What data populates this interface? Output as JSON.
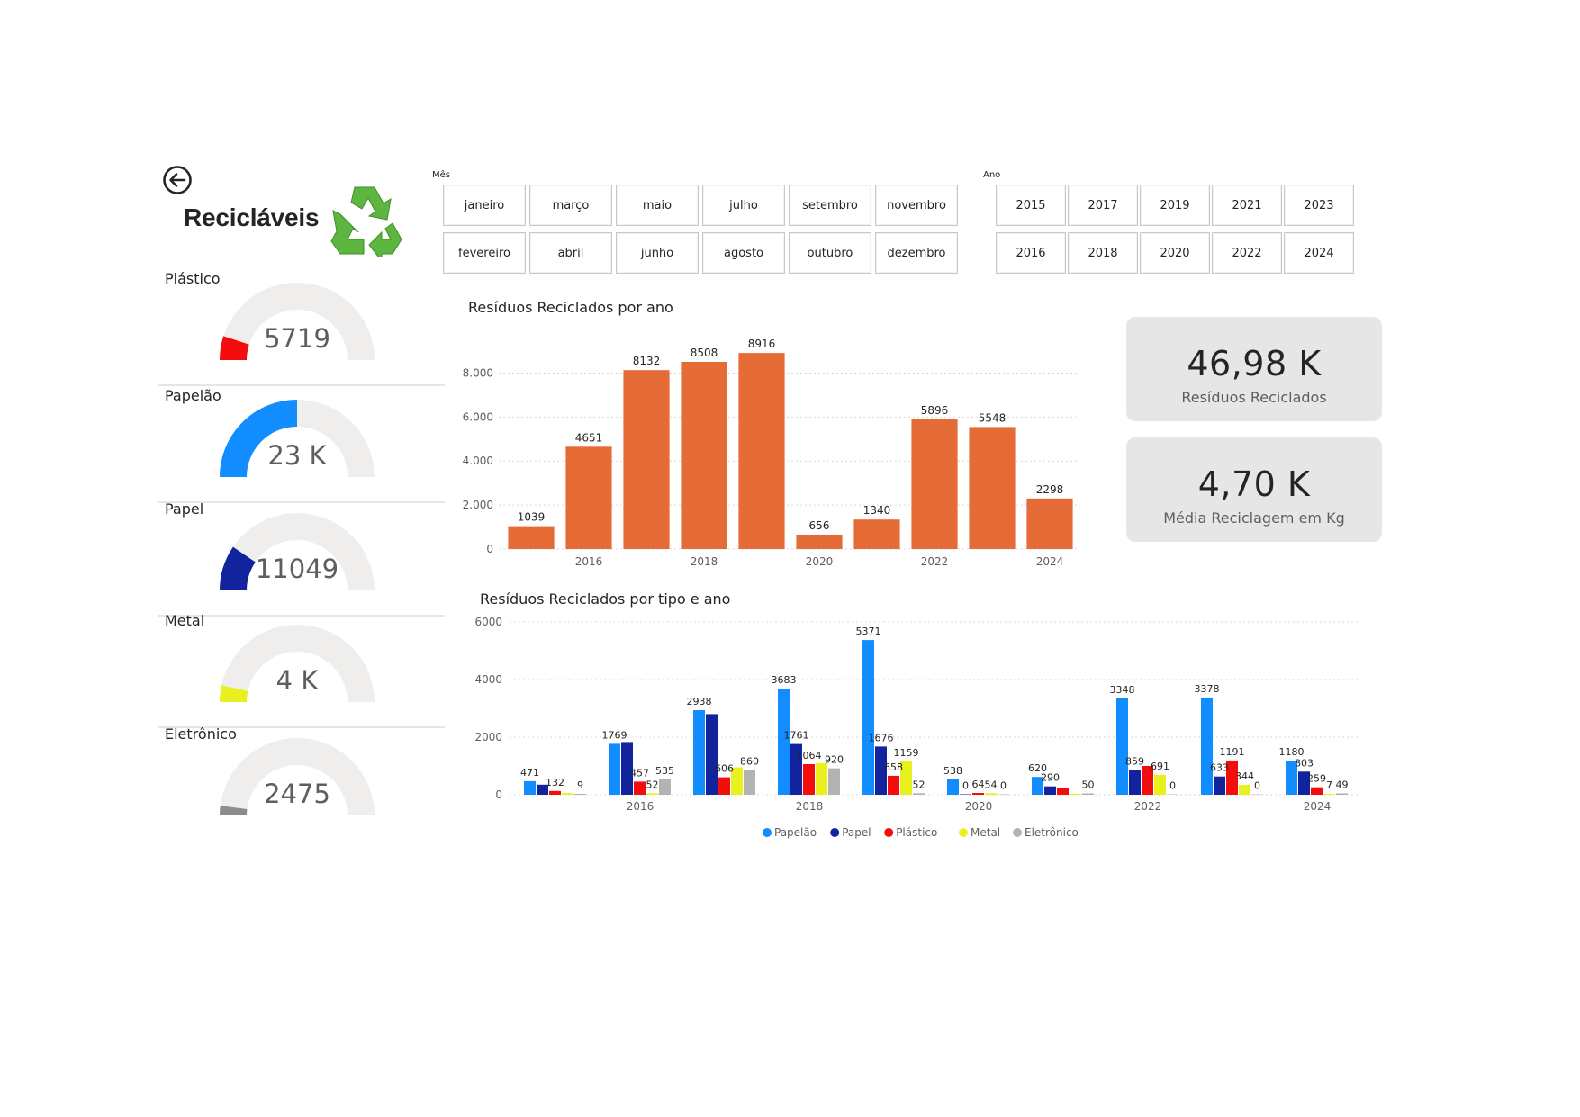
{
  "header": {
    "title": "Recicláveis",
    "back_icon": "back-arrow-icon",
    "logo_icon": "recycle-icon"
  },
  "gauges": [
    {
      "label": "Plástico",
      "display": "5719",
      "fraction": 0.1,
      "color": "#F40D0D"
    },
    {
      "label": "Papelão",
      "display": "23 K",
      "fraction": 0.5,
      "color": "#118DFF"
    },
    {
      "label": "Papel",
      "display": "11049",
      "fraction": 0.19,
      "color": "#12239E"
    },
    {
      "label": "Metal",
      "display": "4 K",
      "fraction": 0.07,
      "color": "#E8F01E"
    },
    {
      "label": "Eletrônico",
      "display": "2475",
      "fraction": 0.04,
      "color": "#8C8C8C"
    }
  ],
  "month_slicer": {
    "header": "Mês",
    "row1": [
      "janeiro",
      "março",
      "maio",
      "julho",
      "setembro",
      "novembro"
    ],
    "row2": [
      "fevereiro",
      "abril",
      "junho",
      "agosto",
      "outubro",
      "dezembro"
    ]
  },
  "year_slicer": {
    "header": "Ano",
    "row1": [
      "2015",
      "2017",
      "2019",
      "2021",
      "2023"
    ],
    "row2": [
      "2016",
      "2018",
      "2020",
      "2022",
      "2024"
    ]
  },
  "cards": [
    {
      "value": "46,98 K",
      "label": "Resíduos Reciclados"
    },
    {
      "value": "4,70 K",
      "label": "Média Reciclagem em Kg"
    }
  ],
  "colors": {
    "bar_orange": "#E66C37",
    "gauge_track": "#F0EEED",
    "card_bg": "#E6E6E6"
  },
  "chart_data": [
    {
      "type": "bar",
      "title": "Resíduos Reciclados por ano",
      "categories": [
        "2015",
        "2016",
        "2017",
        "2018",
        "2019",
        "2020",
        "2021",
        "2022",
        "2023",
        "2024"
      ],
      "x_tick_labels": [
        "2016",
        "2018",
        "2020",
        "2022",
        "2024"
      ],
      "values": [
        1039,
        4651,
        8132,
        8508,
        8916,
        656,
        1340,
        5896,
        5548,
        2298
      ],
      "y_ticks": [
        "0",
        "2.000",
        "4.000",
        "6.000",
        "8.000"
      ],
      "ylim": [
        0,
        9000
      ],
      "grid": true
    },
    {
      "type": "bar",
      "title": "Resíduos Reciclados por tipo e ano",
      "categories": [
        "2015",
        "2016",
        "2017",
        "2018",
        "2019",
        "2020",
        "2021",
        "2022",
        "2023",
        "2024"
      ],
      "x_tick_labels": [
        "2016",
        "2018",
        "2020",
        "2022",
        "2024"
      ],
      "y_ticks": [
        "0",
        "2000",
        "4000",
        "6000"
      ],
      "ylim": [
        0,
        6000
      ],
      "grid": true,
      "legend_position": "bottom",
      "series": [
        {
          "name": "Papelão",
          "color": "#118DFF",
          "values": [
            471,
            1769,
            2938,
            3683,
            5371,
            538,
            620,
            3348,
            3378,
            1180
          ]
        },
        {
          "name": "Papel",
          "color": "#12239E",
          "values": [
            350,
            1830,
            2800,
            1761,
            1676,
            0,
            290,
            859,
            633,
            803
          ]
        },
        {
          "name": "Plástico",
          "color": "#F40D0D",
          "values": [
            132,
            457,
            606,
            1064,
            658,
            64,
            250,
            1000,
            1191,
            259
          ]
        },
        {
          "name": "Metal",
          "color": "#E8F01E",
          "values": [
            60,
            52,
            950,
            1100,
            1159,
            54,
            20,
            691,
            344,
            7
          ]
        },
        {
          "name": "Eletrônico",
          "color": "#B3B3B3",
          "values": [
            9,
            535,
            860,
            920,
            52,
            0,
            50,
            0,
            0,
            49
          ]
        }
      ],
      "data_labels": [
        {
          "cat": 0,
          "series": 0,
          "text": "471"
        },
        {
          "cat": 0,
          "series": 2,
          "text": "132"
        },
        {
          "cat": 0,
          "series": 4,
          "text": "9"
        },
        {
          "cat": 1,
          "series": 0,
          "text": "1769"
        },
        {
          "cat": 1,
          "series": 2,
          "text": "457"
        },
        {
          "cat": 1,
          "series": 3,
          "text": "52"
        },
        {
          "cat": 1,
          "series": 4,
          "text": "535"
        },
        {
          "cat": 2,
          "series": 0,
          "text": "2938"
        },
        {
          "cat": 2,
          "series": 2,
          "text": "606"
        },
        {
          "cat": 2,
          "series": 4,
          "text": "860"
        },
        {
          "cat": 3,
          "series": 0,
          "text": "3683"
        },
        {
          "cat": 3,
          "series": 1,
          "text": "1761"
        },
        {
          "cat": 3,
          "series": 2,
          "text": "1064"
        },
        {
          "cat": 3,
          "series": 4,
          "text": "920"
        },
        {
          "cat": 4,
          "series": 0,
          "text": "5371"
        },
        {
          "cat": 4,
          "series": 1,
          "text": "1676"
        },
        {
          "cat": 4,
          "series": 2,
          "text": "658"
        },
        {
          "cat": 4,
          "series": 3,
          "text": "1159"
        },
        {
          "cat": 4,
          "series": 4,
          "text": "52"
        },
        {
          "cat": 5,
          "series": 0,
          "text": "538"
        },
        {
          "cat": 5,
          "series": 1,
          "text": "0"
        },
        {
          "cat": 5,
          "series": 2,
          "text": "64"
        },
        {
          "cat": 5,
          "series": 3,
          "text": "54"
        },
        {
          "cat": 5,
          "series": 4,
          "text": "0"
        },
        {
          "cat": 6,
          "series": 0,
          "text": "620"
        },
        {
          "cat": 6,
          "series": 1,
          "text": "290"
        },
        {
          "cat": 6,
          "series": 4,
          "text": "50"
        },
        {
          "cat": 7,
          "series": 0,
          "text": "3348"
        },
        {
          "cat": 7,
          "series": 1,
          "text": "859"
        },
        {
          "cat": 7,
          "series": 3,
          "text": "691"
        },
        {
          "cat": 7,
          "series": 4,
          "text": "0"
        },
        {
          "cat": 8,
          "series": 0,
          "text": "3378"
        },
        {
          "cat": 8,
          "series": 1,
          "text": "633"
        },
        {
          "cat": 8,
          "series": 2,
          "text": "1191"
        },
        {
          "cat": 8,
          "series": 3,
          "text": "344"
        },
        {
          "cat": 8,
          "series": 4,
          "text": "0"
        },
        {
          "cat": 9,
          "series": 0,
          "text": "1180"
        },
        {
          "cat": 9,
          "series": 1,
          "text": "803"
        },
        {
          "cat": 9,
          "series": 2,
          "text": "259"
        },
        {
          "cat": 9,
          "series": 3,
          "text": "7"
        },
        {
          "cat": 9,
          "series": 4,
          "text": "49"
        }
      ]
    }
  ]
}
